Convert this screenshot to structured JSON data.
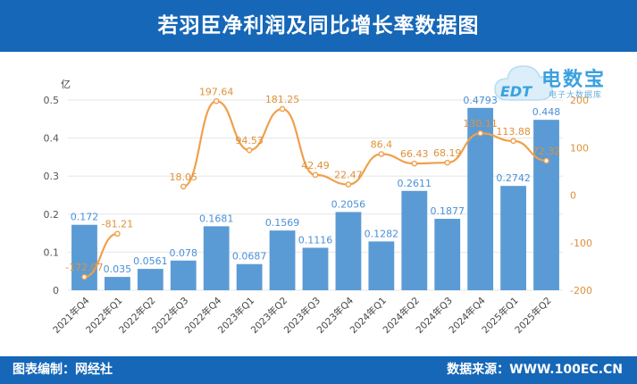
{
  "header": {
    "title": "若羽臣净利润及同比增长率数据图"
  },
  "footer": {
    "left": "图表编制：网经社",
    "right": "数据来源：WWW.100EC.CN"
  },
  "logo": {
    "name": "电数宝",
    "sub": "电子大数据库",
    "mark": "EDT",
    "icon": "cloud-icon"
  },
  "colors": {
    "bar": "#5b9bd5",
    "bar_label": "#4a90d9",
    "line": "#f0a04b",
    "line_label": "#e0913a",
    "header": "#1667b7"
  },
  "chart_data": {
    "type": "bar",
    "ylabel": "亿",
    "categories": [
      "2021年Q4",
      "2022年Q1",
      "2022年Q2",
      "2022年Q3",
      "2022年Q4",
      "2023年Q1",
      "2023年Q2",
      "2023年Q3",
      "2023年Q4",
      "2024年Q1",
      "2024年Q2",
      "2024年Q3",
      "2024年Q4",
      "2025年Q1",
      "2025年Q2"
    ],
    "bar_values": [
      0.172,
      0.035,
      0.0561,
      0.078,
      0.1681,
      0.0687,
      0.1569,
      0.1116,
      0.2056,
      0.1282,
      0.2611,
      0.1877,
      0.4793,
      0.2742,
      0.448
    ],
    "bar_labels": [
      "0.172",
      "0.035",
      "0.0561",
      "0.078",
      "0.1681",
      "0.0687",
      "0.1569",
      "0.1116",
      "0.2056",
      "0.1282",
      "0.2611",
      "0.1877",
      "0.4793",
      "0.2742",
      "0.448"
    ],
    "line_values": [
      -172.07,
      -81.21,
      null,
      18.05,
      197.64,
      94.53,
      181.25,
      42.49,
      22.47,
      86.4,
      66.43,
      68.19,
      130.11,
      113.88,
      72.32
    ],
    "line_labels": [
      "-172.07",
      "-81.21",
      "",
      "18.05",
      "197.64",
      "94.53",
      "181.25",
      "42.49",
      "22.47",
      "86.4",
      "66.43",
      "68.19",
      "130.11",
      "113.88",
      "72.32"
    ],
    "left_axis": {
      "min": 0,
      "max": 0.5,
      "ticks": [
        "0",
        "0.1",
        "0.2",
        "0.3",
        "0.4",
        "0.5"
      ]
    },
    "right_axis": {
      "min": -200,
      "max": 200,
      "ticks": [
        "-200",
        "-100",
        "0",
        "100",
        "200"
      ]
    },
    "grid": true,
    "legend": "none"
  }
}
